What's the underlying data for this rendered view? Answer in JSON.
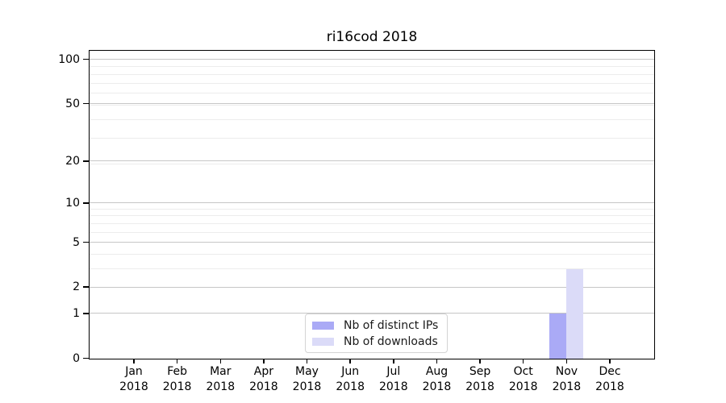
{
  "chart_data": {
    "type": "bar",
    "title": "ri16cod 2018",
    "categories": [
      "Jan",
      "Feb",
      "Mar",
      "Apr",
      "May",
      "Jun",
      "Jul",
      "Aug",
      "Sep",
      "Oct",
      "Nov",
      "Dec"
    ],
    "year_label": "2018",
    "series": [
      {
        "name": "Nb of distinct IPs",
        "color": "#aaaaf6",
        "values": [
          0,
          0,
          0,
          0,
          0,
          0,
          0,
          0,
          0,
          0,
          1,
          0
        ]
      },
      {
        "name": "Nb of downloads",
        "color": "#dbdbf8",
        "values": [
          0,
          0,
          0,
          0,
          0,
          0,
          0,
          0,
          0,
          0,
          3,
          0
        ]
      }
    ],
    "yscale": "log10(1+x)",
    "ylim": [
      0,
      113.6
    ],
    "yticks": [
      0,
      1,
      2,
      5,
      10,
      20,
      50,
      100
    ],
    "ytick_labels": [
      "0",
      "1",
      "2",
      "5",
      "10",
      "20",
      "50",
      "100"
    ],
    "minor_gridlines": [
      1,
      2,
      3,
      4,
      5,
      6,
      7,
      8,
      9,
      19,
      29,
      39,
      49,
      59,
      69,
      79,
      89
    ],
    "grid": true,
    "legend_position": "lower center",
    "colors": {
      "major_grid": "#c6c6c6",
      "minor_grid": "#ececec",
      "spine": "#000000",
      "text": "#000000"
    }
  }
}
